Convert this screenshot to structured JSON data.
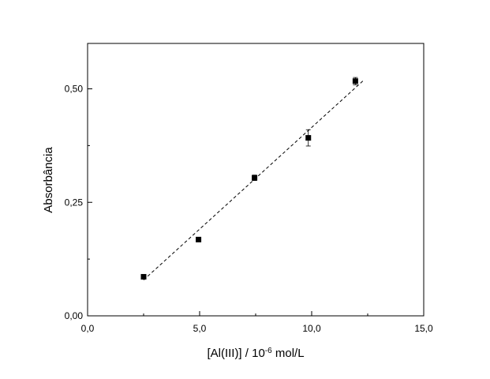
{
  "chart_data": {
    "type": "scatter",
    "xlabel": "[Al(III)] / 10",
    "xlabel_exponent": "-6",
    "xlabel_unit": " mol/L",
    "ylabel": "Absorbância",
    "xlim": [
      0,
      15
    ],
    "ylim": [
      0,
      0.6
    ],
    "x_ticks": [
      0,
      5,
      10,
      15
    ],
    "x_tick_labels": [
      "0,0",
      "5,0",
      "10,0",
      "15,0"
    ],
    "y_ticks": [
      0,
      0.25,
      0.5
    ],
    "y_tick_labels": [
      "0,00",
      "0,25",
      "0,50"
    ],
    "grid": false,
    "series": [
      {
        "x": [
          2.5,
          4.95,
          7.45,
          9.85,
          11.95
        ],
        "y": [
          0.086,
          0.168,
          0.304,
          0.392,
          0.517
        ],
        "y_error": [
          0.004,
          0.004,
          0.006,
          0.018,
          0.008
        ],
        "marker": "square",
        "color": "#000000"
      }
    ],
    "fit_line": {
      "style": "dashed",
      "x": [
        2.5,
        12.3
      ],
      "y": [
        0.079,
        0.518
      ]
    }
  }
}
